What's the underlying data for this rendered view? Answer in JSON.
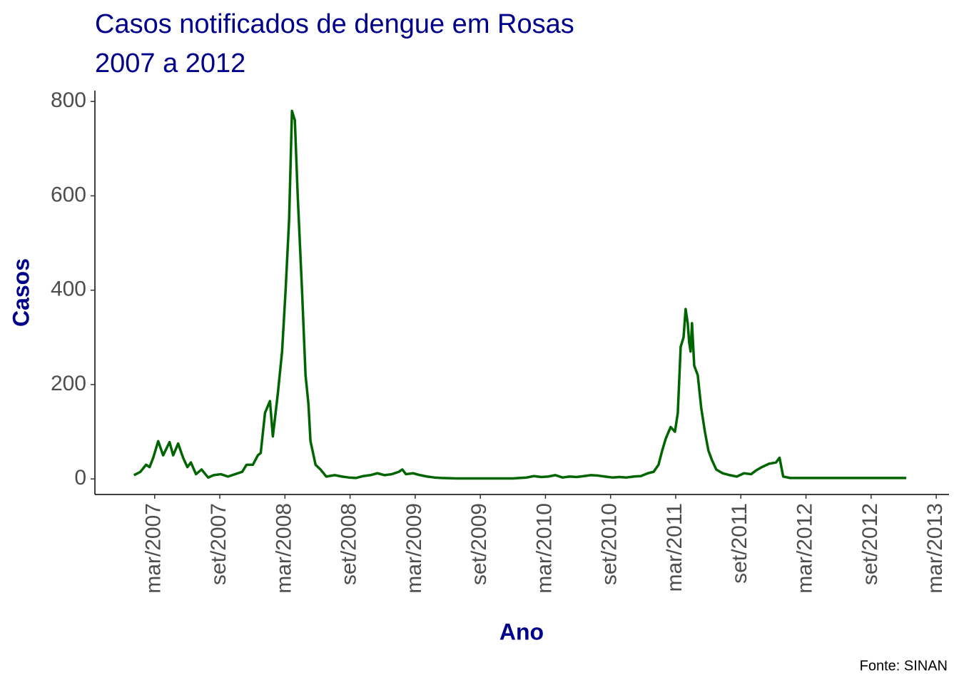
{
  "chart_data": {
    "type": "line",
    "title": "Casos notificados de dengue em Rosas",
    "subtitle": "2007 a 2012",
    "x_label": "Ano",
    "y_label": "Casos",
    "caption": "Fonte: SINAN",
    "x": [
      2007.008,
      2007.057,
      2007.101,
      2007.128,
      2007.156,
      2007.194,
      2007.232,
      2007.281,
      2007.309,
      2007.347,
      2007.385,
      2007.418,
      2007.445,
      2007.484,
      2007.527,
      2007.577,
      2007.62,
      2007.675,
      2007.73,
      2007.784,
      2007.839,
      2007.872,
      2007.921,
      2007.959,
      2007.981,
      2008.014,
      2008.052,
      2008.074,
      2008.112,
      2008.145,
      2008.172,
      2008.199,
      2008.221,
      2008.243,
      2008.265,
      2008.298,
      2008.325,
      2008.347,
      2008.363,
      2008.402,
      2008.44,
      2008.484,
      2008.549,
      2008.604,
      2008.658,
      2008.713,
      2008.768,
      2008.822,
      2008.877,
      2008.932,
      2008.986,
      2009.041,
      2009.068,
      2009.096,
      2009.15,
      2009.205,
      2009.259,
      2009.314,
      2009.369,
      2009.478,
      2009.587,
      2009.697,
      2009.806,
      2009.915,
      2010.024,
      2010.079,
      2010.134,
      2010.188,
      2010.243,
      2010.298,
      2010.352,
      2010.407,
      2010.462,
      2010.516,
      2010.571,
      2010.625,
      2010.68,
      2010.735,
      2010.789,
      2010.844,
      2010.899,
      2010.953,
      2010.997,
      2011.035,
      2011.063,
      2011.09,
      2011.128,
      2011.161,
      2011.183,
      2011.205,
      2011.227,
      2011.243,
      2011.259,
      2011.27,
      2011.281,
      2011.292,
      2011.309,
      2011.336,
      2011.363,
      2011.391,
      2011.418,
      2011.445,
      2011.478,
      2011.527,
      2011.582,
      2011.636,
      2011.691,
      2011.746,
      2011.784,
      2011.828,
      2011.882,
      2011.937,
      2011.964,
      2011.992,
      2012.046,
      2012.155,
      2012.319,
      2012.538,
      2012.757,
      2012.937
    ],
    "series": [
      {
        "name": "Casos",
        "color": "#006400",
        "values": [
          8,
          15,
          30,
          25,
          45,
          80,
          50,
          78,
          50,
          75,
          45,
          25,
          35,
          10,
          20,
          3,
          8,
          10,
          5,
          10,
          15,
          30,
          30,
          50,
          55,
          140,
          165,
          90,
          180,
          270,
          400,
          550,
          780,
          760,
          600,
          400,
          220,
          160,
          80,
          30,
          20,
          5,
          8,
          5,
          3,
          2,
          6,
          8,
          12,
          8,
          10,
          15,
          20,
          10,
          12,
          8,
          5,
          3,
          2,
          1,
          1,
          1,
          1,
          1,
          3,
          6,
          4,
          5,
          8,
          3,
          5,
          4,
          6,
          8,
          7,
          5,
          3,
          4,
          3,
          5,
          6,
          12,
          15,
          30,
          60,
          85,
          110,
          100,
          140,
          280,
          300,
          360,
          330,
          290,
          270,
          330,
          240,
          220,
          150,
          100,
          60,
          40,
          20,
          12,
          8,
          5,
          12,
          10,
          18,
          25,
          32,
          35,
          45,
          5,
          2,
          2,
          2,
          2,
          2,
          2
        ]
      }
    ],
    "xlim": [
      2006.708,
      2013.265
    ],
    "xticks": [
      {
        "value": 2007.167,
        "label": "mar/2007"
      },
      {
        "value": 2007.667,
        "label": "set/2007"
      },
      {
        "value": 2008.167,
        "label": "mar/2008"
      },
      {
        "value": 2008.667,
        "label": "set/2008"
      },
      {
        "value": 2009.167,
        "label": "mar/2009"
      },
      {
        "value": 2009.667,
        "label": "set/2009"
      },
      {
        "value": 2010.167,
        "label": "mar/2010"
      },
      {
        "value": 2010.667,
        "label": "set/2010"
      },
      {
        "value": 2011.167,
        "label": "mar/2011"
      },
      {
        "value": 2011.667,
        "label": "set/2011"
      },
      {
        "value": 2012.167,
        "label": "mar/2012"
      },
      {
        "value": 2012.667,
        "label": "set/2012"
      },
      {
        "value": 2013.167,
        "label": "mar/2013"
      }
    ],
    "ylim": [
      -33,
      823
    ],
    "yticks": [
      0,
      200,
      400,
      600,
      800
    ],
    "grid": false
  }
}
